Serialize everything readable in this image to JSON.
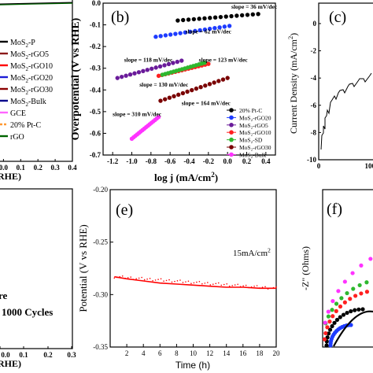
{
  "chart_data": [
    {
      "panel": "a",
      "type": "line",
      "partial": true,
      "xlabel": "RHE)",
      "x_ticks": [
        "0.0",
        "0.1",
        "0.2",
        "0.3",
        "0.4"
      ],
      "xlim": [
        -0.02,
        0.4
      ],
      "legend": {
        "position": "left",
        "entries": [
          {
            "text": "MoS",
            "sub": "2",
            "rest": "-P",
            "color": "#000000",
            "style": "line"
          },
          {
            "text": "MoS",
            "sub": "2",
            "rest": "-rGO5",
            "color": "#8b1a1a",
            "style": "line"
          },
          {
            "text": "MoS",
            "sub": "2",
            "rest": "-rGO10",
            "color": "#ff0000",
            "style": "line"
          },
          {
            "text": "MoS",
            "sub": "2",
            "rest": "-rGO20",
            "color": "#1c1cd6",
            "style": "line"
          },
          {
            "text": "MoS",
            "sub": "2",
            "rest": "-rGO30",
            "color": "#8b0000",
            "style": "line"
          },
          {
            "text": "MoS",
            "sub": "2",
            "rest": "-Bulk",
            "color": "#00008b",
            "style": "line"
          },
          {
            "text": "GCE",
            "sub": "",
            "rest": "",
            "color": "#ff66ff",
            "style": "line"
          },
          {
            "text": "20% Pt-C",
            "sub": "",
            "rest": "",
            "color": "#ff9933",
            "style": "dash"
          },
          {
            "text": "rGO",
            "sub": "",
            "rest": "",
            "color": "#006400",
            "style": "line"
          }
        ]
      }
    },
    {
      "panel": "b",
      "type": "scatter",
      "label": "(b)",
      "xlabel": "log j (mA/cm",
      "xlabel_sup": "2",
      "xlabel_end": ")",
      "ylabel": "Overpotential (V vs RHE)",
      "xlim": [
        -1.3,
        0.5
      ],
      "ylim": [
        -0.7,
        0.0
      ],
      "x_ticks": [
        -1.2,
        -1.0,
        -0.8,
        -0.6,
        -0.4,
        -0.2,
        0.0,
        0.2,
        0.4
      ],
      "x_tick_labels": [
        "-1.2",
        "-1.0",
        "-0.8",
        "-0.6",
        "-0.4",
        "-0.2",
        "0.0",
        "0.2",
        "0.4"
      ],
      "y_ticks": [
        0.0,
        -0.1,
        -0.2,
        -0.3,
        -0.4,
        -0.5,
        -0.6,
        -0.7
      ],
      "y_tick_labels": [
        "0.0",
        "-0.1",
        "-0.2",
        "-0.3",
        "-0.4",
        "-0.5",
        "-0.6",
        "-0.7"
      ],
      "series": [
        {
          "name": "20% Pt-C",
          "color": "#000000",
          "x": [
            -0.52,
            0.32
          ],
          "y": [
            -0.08,
            -0.05
          ]
        },
        {
          "name": "MoS₂-rGO20",
          "color": "#1e3cff",
          "x": [
            -0.75,
            0.02
          ],
          "y": [
            -0.155,
            -0.105
          ]
        },
        {
          "name": "MoS₂-rGO5",
          "color": "#6a1b9a",
          "x": [
            -1.15,
            -0.48
          ],
          "y": [
            -0.345,
            -0.265
          ]
        },
        {
          "name": "MoS₂-rGO10",
          "color": "#ff2020",
          "x": [
            -0.72,
            -0.2
          ],
          "y": [
            -0.335,
            -0.28
          ]
        },
        {
          "name": "MoS₂-SD",
          "color": "#2eb82e",
          "x": [
            -0.68,
            -0.24
          ],
          "y": [
            -0.33,
            -0.275
          ]
        },
        {
          "name": "MoS₂-rGO30",
          "color": "#7a0000",
          "x": [
            -0.7,
            0.0
          ],
          "y": [
            -0.45,
            -0.345
          ]
        },
        {
          "name": "MoS₂-Bulk",
          "color": "#ff33ff",
          "x": [
            -1.0,
            -0.72
          ],
          "y": [
            -0.625,
            -0.525
          ]
        }
      ],
      "annotations": [
        {
          "text": "slope = 36 mV/dec",
          "x": 0.04,
          "y": -0.025
        },
        {
          "text": "slope = 62 mV/dec",
          "x": -0.44,
          "y": -0.14
        },
        {
          "text": "slope = 123 mV/dec",
          "x": -0.3,
          "y": -0.27
        },
        {
          "text": "slope = 118 mV/dec",
          "x": -1.08,
          "y": -0.27
        },
        {
          "text": "slope = 130 mV/dec",
          "x": -0.92,
          "y": -0.385
        },
        {
          "text": "slope = 164 mV/dec",
          "x": -0.48,
          "y": -0.47
        },
        {
          "text": "slope = 310 mV/dec",
          "x": -1.2,
          "y": -0.52
        }
      ],
      "legend": {
        "position": "bottom-right"
      }
    },
    {
      "panel": "c",
      "type": "line",
      "partial": true,
      "label": "(c)",
      "ylabel": "Current Density (mA/cm",
      "ylabel_sup": "2",
      "ylabel_end": ")",
      "y_tick_labels": [
        "0",
        "-2",
        "-4",
        "-6",
        "-8",
        "-10"
      ],
      "ylim": [
        -10,
        1.5
      ],
      "x_tick_labels": [
        "0",
        "100"
      ],
      "xlim": [
        0,
        115
      ]
    },
    {
      "panel": "d",
      "type": "line",
      "partial": true,
      "xlabel": "RHE)",
      "x_tick_labels": [
        "0.0",
        "0.1",
        "0.2",
        "0.3"
      ],
      "annotations": [
        "re",
        "1000 Cycles"
      ]
    },
    {
      "panel": "e",
      "type": "line",
      "label": "(e)",
      "xlabel": "Time (h)",
      "ylabel": "Potential (V vs RHE)",
      "xlim": [
        0,
        20
      ],
      "ylim": [
        -0.35,
        -0.2
      ],
      "x_ticks": [
        2,
        4,
        6,
        8,
        10,
        12,
        14,
        16,
        18,
        20
      ],
      "x_tick_labels": [
        "2",
        "4",
        "6",
        "8",
        "10",
        "12",
        "14",
        "16",
        "18",
        "20"
      ],
      "y_ticks": [
        -0.2,
        -0.25,
        -0.3,
        -0.35
      ],
      "y_tick_labels": [
        "-0.20",
        "-0.25",
        "-0.30",
        "-0.35"
      ],
      "series": [
        {
          "color": "#ff0000",
          "x": [
            0.5,
            2,
            4,
            6,
            8,
            10,
            12,
            14,
            16,
            18,
            20
          ],
          "y": [
            -0.283,
            -0.285,
            -0.287,
            -0.289,
            -0.29,
            -0.291,
            -0.292,
            -0.293,
            -0.293,
            -0.294,
            -0.294
          ]
        }
      ],
      "annotation": {
        "text": "15mA/cm",
        "sup": "2"
      }
    },
    {
      "panel": "f",
      "type": "scatter",
      "partial": true,
      "label": "(f)",
      "ylabel": "-Z\" (Ohms)"
    }
  ]
}
